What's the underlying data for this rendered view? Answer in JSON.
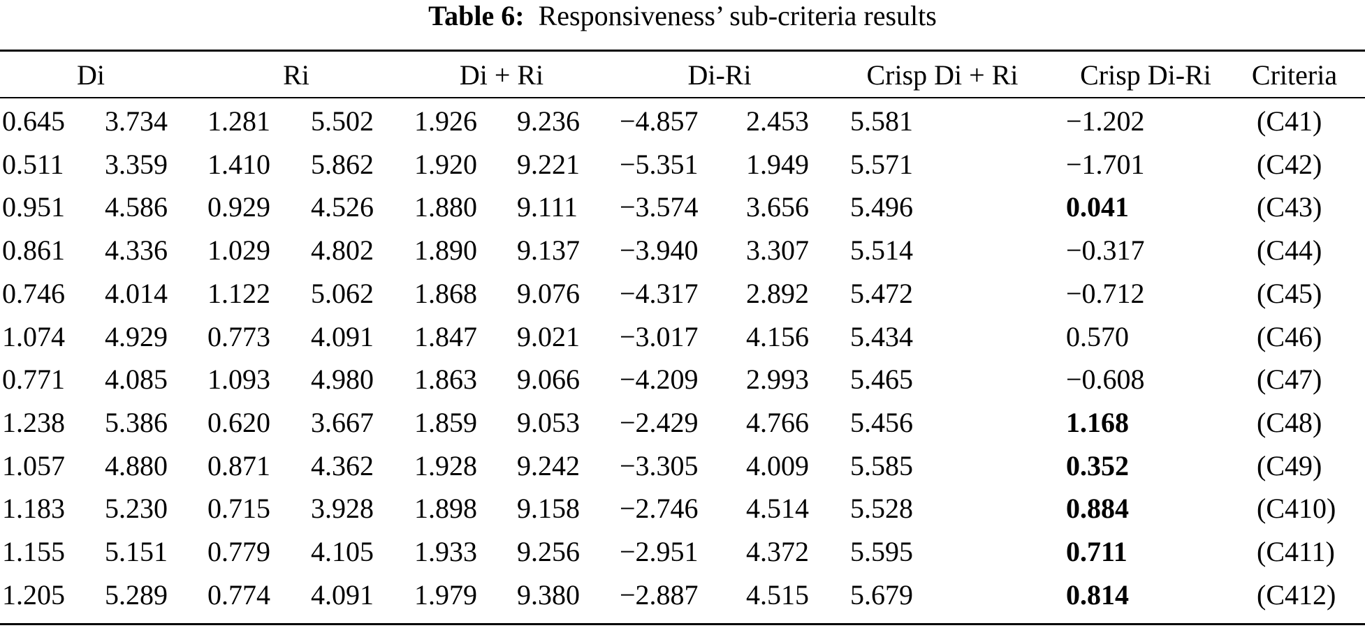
{
  "caption": {
    "label": "Table 6:",
    "text": "Responsiveness’ sub-criteria results"
  },
  "headers": [
    "Di",
    "Ri",
    "Di + Ri",
    "Di-Ri",
    "Crisp Di + Ri",
    "Crisp Di-Ri",
    "Criteria"
  ],
  "rows": [
    {
      "cells": [
        "0.645",
        "3.734",
        "1.281",
        "5.502",
        "1.926",
        "9.236",
        "−4.857",
        "2.453",
        "5.581",
        "−1.202",
        "(C41)"
      ],
      "crisp_bold": false
    },
    {
      "cells": [
        "0.511",
        "3.359",
        "1.410",
        "5.862",
        "1.920",
        "9.221",
        "−5.351",
        "1.949",
        "5.571",
        "−1.701",
        "(C42)"
      ],
      "crisp_bold": false
    },
    {
      "cells": [
        "0.951",
        "4.586",
        "0.929",
        "4.526",
        "1.880",
        "9.111",
        "−3.574",
        "3.656",
        "5.496",
        "0.041",
        "(C43)"
      ],
      "crisp_bold": true
    },
    {
      "cells": [
        "0.861",
        "4.336",
        "1.029",
        "4.802",
        "1.890",
        "9.137",
        "−3.940",
        "3.307",
        "5.514",
        "−0.317",
        "(C44)"
      ],
      "crisp_bold": false
    },
    {
      "cells": [
        "0.746",
        "4.014",
        "1.122",
        "5.062",
        "1.868",
        "9.076",
        "−4.317",
        "2.892",
        "5.472",
        "−0.712",
        "(C45)"
      ],
      "crisp_bold": false
    },
    {
      "cells": [
        "1.074",
        "4.929",
        "0.773",
        "4.091",
        "1.847",
        "9.021",
        "−3.017",
        "4.156",
        "5.434",
        "0.570",
        "(C46)"
      ],
      "crisp_bold": false
    },
    {
      "cells": [
        "0.771",
        "4.085",
        "1.093",
        "4.980",
        "1.863",
        "9.066",
        "−4.209",
        "2.993",
        "5.465",
        "−0.608",
        "(C47)"
      ],
      "crisp_bold": false
    },
    {
      "cells": [
        "1.238",
        "5.386",
        "0.620",
        "3.667",
        "1.859",
        "9.053",
        "−2.429",
        "4.766",
        "5.456",
        "1.168",
        "(C48)"
      ],
      "crisp_bold": true
    },
    {
      "cells": [
        "1.057",
        "4.880",
        "0.871",
        "4.362",
        "1.928",
        "9.242",
        "−3.305",
        "4.009",
        "5.585",
        "0.352",
        "(C49)"
      ],
      "crisp_bold": true
    },
    {
      "cells": [
        "1.183",
        "5.230",
        "0.715",
        "3.928",
        "1.898",
        "9.158",
        "−2.746",
        "4.514",
        "5.528",
        "0.884",
        "(C410)"
      ],
      "crisp_bold": true
    },
    {
      "cells": [
        "1.155",
        "5.151",
        "0.779",
        "4.105",
        "1.933",
        "9.256",
        "−2.951",
        "4.372",
        "5.595",
        "0.711",
        "(C411)"
      ],
      "crisp_bold": true
    },
    {
      "cells": [
        "1.205",
        "5.289",
        "0.774",
        "4.091",
        "1.979",
        "9.380",
        "−2.887",
        "4.515",
        "5.679",
        "0.814",
        "(C412)"
      ],
      "crisp_bold": true
    }
  ]
}
